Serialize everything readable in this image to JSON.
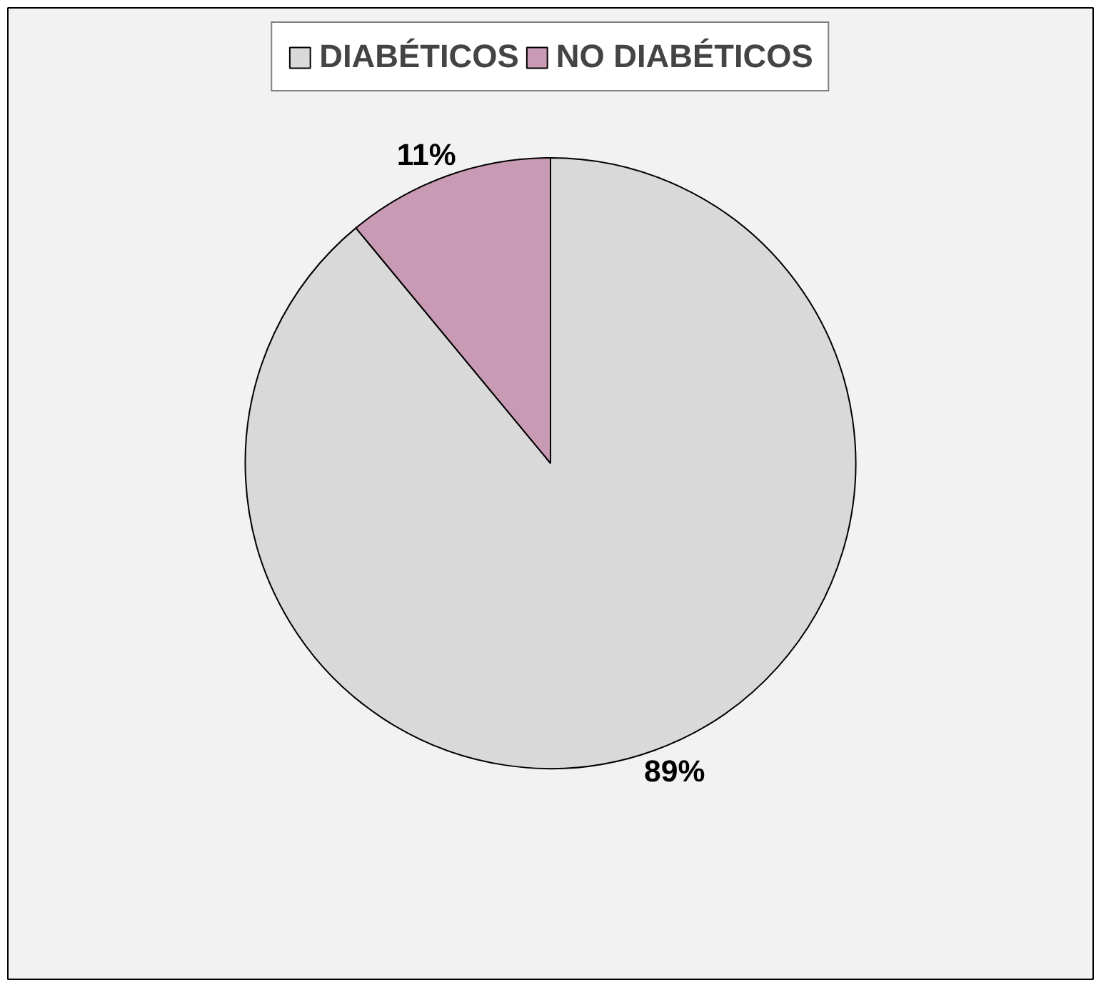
{
  "chart_data": {
    "type": "pie",
    "categories": [
      "DIABÉTICOS",
      "NO DIABÉTICOS"
    ],
    "values": [
      89,
      11
    ],
    "colors": [
      "#d9d9d9",
      "#c89ab4"
    ],
    "value_labels": [
      "89%",
      "11%"
    ],
    "legend": "top"
  }
}
